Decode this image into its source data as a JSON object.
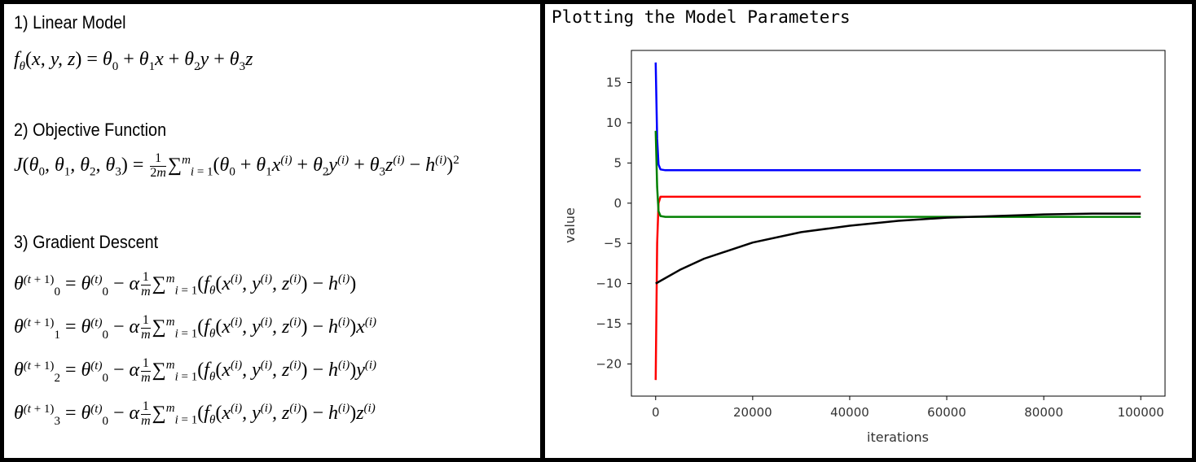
{
  "left": {
    "section1": "1) Linear Model",
    "section2": "2) Objective Function",
    "section3": "3) Gradient Descent"
  },
  "chart_title": "Plotting the Model Parameters",
  "chart_data": {
    "type": "line",
    "title": "",
    "xlabel": "iterations",
    "ylabel": "value",
    "xlim": [
      -5000,
      105000
    ],
    "ylim": [
      -24.0,
      19.0
    ],
    "xticks": [
      0,
      20000,
      40000,
      60000,
      80000,
      100000
    ],
    "xtick_labels": [
      "0",
      "20000",
      "40000",
      "60000",
      "80000",
      "100000"
    ],
    "yticks": [
      15,
      10,
      5,
      0,
      -5,
      -10,
      -15,
      -20
    ],
    "ytick_labels": [
      "15",
      "10",
      "5",
      "0",
      "−5",
      "−10",
      "−15",
      "−20"
    ],
    "grid": false,
    "legend": "none",
    "series": [
      {
        "color": "#0000ff",
        "x": [
          0,
          300,
          600,
          1000,
          2000,
          100000
        ],
        "y": [
          17.5,
          8.0,
          4.8,
          4.2,
          4.1,
          4.1
        ]
      },
      {
        "color": "#ff0000",
        "x": [
          0,
          300,
          600,
          1000,
          2000,
          100000
        ],
        "y": [
          -22.0,
          -5.0,
          0.0,
          0.8,
          0.8,
          0.8
        ]
      },
      {
        "color": "#008000",
        "x": [
          0,
          300,
          600,
          1000,
          2000,
          100000
        ],
        "y": [
          9.0,
          2.0,
          -1.0,
          -1.6,
          -1.7,
          -1.7
        ]
      },
      {
        "color": "#000000",
        "x": [
          0,
          5000,
          10000,
          20000,
          30000,
          40000,
          50000,
          60000,
          70000,
          80000,
          90000,
          100000
        ],
        "y": [
          -10.0,
          -8.3,
          -6.9,
          -4.9,
          -3.6,
          -2.8,
          -2.2,
          -1.8,
          -1.6,
          -1.4,
          -1.3,
          -1.3
        ]
      }
    ]
  }
}
